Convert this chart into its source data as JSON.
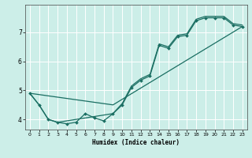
{
  "xlabel": "Humidex (Indice chaleur)",
  "bg_color": "#cceee8",
  "grid_color": "#ffffff",
  "line_color": "#1a6e62",
  "xlim": [
    -0.5,
    23.5
  ],
  "ylim": [
    3.65,
    7.95
  ],
  "xticks": [
    0,
    1,
    2,
    3,
    4,
    5,
    6,
    7,
    8,
    9,
    10,
    11,
    12,
    13,
    14,
    15,
    16,
    17,
    18,
    19,
    20,
    21,
    22,
    23
  ],
  "yticks": [
    4,
    5,
    6,
    7
  ],
  "line1_x": [
    0,
    1,
    2,
    3,
    4,
    5,
    6,
    7,
    8,
    9,
    10,
    11,
    12,
    13,
    14,
    15,
    16,
    17,
    18,
    19,
    20,
    21,
    22,
    23
  ],
  "line1_y": [
    4.9,
    4.5,
    4.0,
    3.9,
    3.85,
    3.9,
    4.2,
    4.05,
    3.95,
    4.2,
    4.5,
    5.1,
    5.35,
    5.5,
    6.55,
    6.45,
    6.85,
    6.9,
    7.4,
    7.5,
    7.5,
    7.5,
    7.25,
    7.2
  ],
  "line2_x": [
    0,
    1,
    2,
    3,
    9,
    10,
    11,
    12,
    13,
    14,
    15,
    16,
    17,
    18,
    19,
    20,
    21,
    22,
    23
  ],
  "line2_y": [
    4.9,
    4.5,
    4.0,
    3.9,
    4.2,
    4.55,
    5.15,
    5.4,
    5.55,
    6.6,
    6.5,
    6.9,
    6.95,
    7.45,
    7.55,
    7.55,
    7.55,
    7.3,
    7.25
  ],
  "line3_x": [
    0,
    9,
    23
  ],
  "line3_y": [
    4.9,
    4.5,
    7.2
  ],
  "marker_x": [
    0,
    1,
    2,
    3,
    4,
    5,
    6,
    7,
    8,
    9,
    10,
    11,
    12,
    13,
    14,
    15,
    16,
    17,
    18,
    19,
    20,
    21,
    22,
    23
  ],
  "marker_y": [
    4.9,
    4.5,
    4.0,
    3.9,
    3.85,
    3.9,
    4.2,
    4.05,
    3.95,
    4.2,
    4.5,
    5.1,
    5.35,
    5.5,
    6.55,
    6.45,
    6.85,
    6.9,
    7.4,
    7.5,
    7.5,
    7.5,
    7.25,
    7.2
  ]
}
